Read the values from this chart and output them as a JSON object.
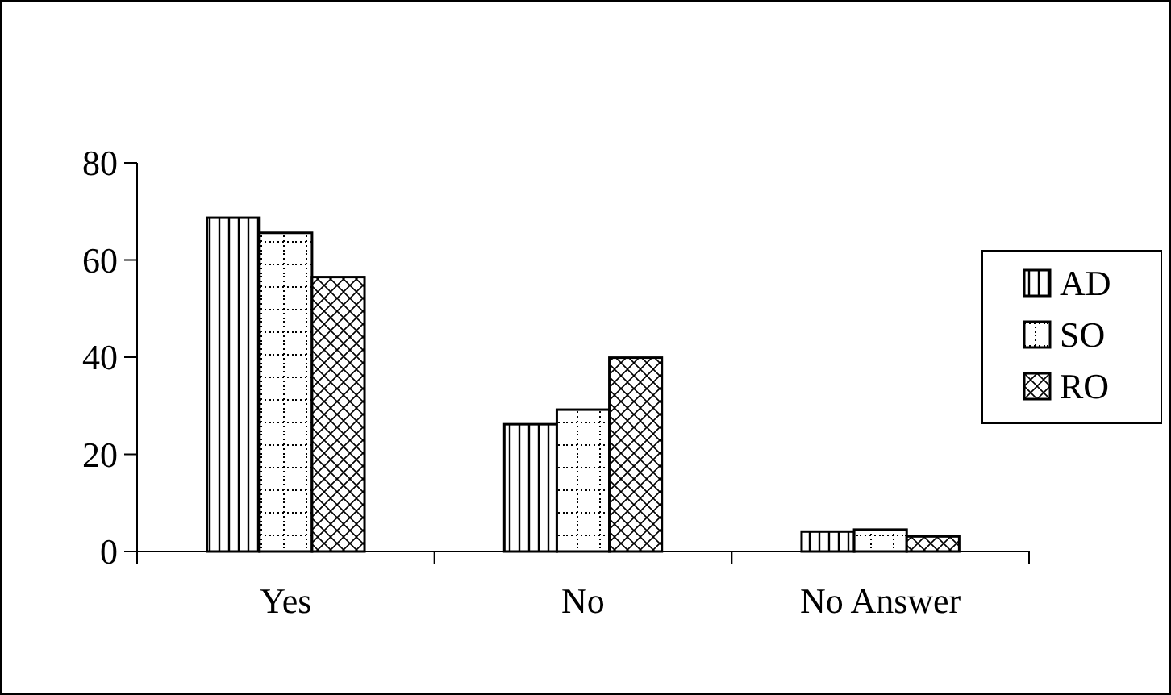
{
  "chart_data": {
    "type": "bar",
    "categories": [
      "Yes",
      "No",
      "No Answer"
    ],
    "series": [
      {
        "name": "AD",
        "color": "#000000",
        "values": [
          68.7,
          26.2,
          4.1
        ]
      },
      {
        "name": "SO",
        "color": "#000000",
        "values": [
          65.6,
          29.2,
          4.5
        ]
      },
      {
        "name": "RO",
        "color": "#000000",
        "values": [
          56.5,
          39.9,
          3.1
        ]
      }
    ],
    "ylim": [
      0,
      80
    ],
    "yticks": [
      0,
      20,
      40,
      60,
      80
    ],
    "grid": false,
    "legend": "right"
  }
}
